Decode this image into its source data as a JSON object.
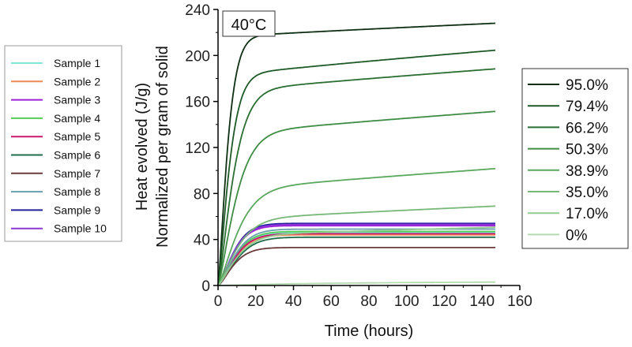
{
  "chart_data": {
    "type": "line",
    "annotation": "40°C",
    "xlabel": "Time (hours)",
    "ylabel_line1": "Heat evolved (J/g)",
    "ylabel_line2": "Normalized per gram of solid",
    "xlim": [
      0,
      160
    ],
    "ylim": [
      0,
      240
    ],
    "x_ticks": [
      0,
      20,
      40,
      60,
      80,
      100,
      120,
      140,
      160
    ],
    "y_ticks": [
      0,
      40,
      80,
      120,
      160,
      200,
      240
    ],
    "x_end": 147,
    "left_legend": [
      {
        "name": "Sample 1",
        "color": "#7fe6d9",
        "final": 46,
        "tau": 11
      },
      {
        "name": "Sample 2",
        "color": "#f08a55",
        "final": 44,
        "tau": 11
      },
      {
        "name": "Sample 3",
        "color": "#a020d8",
        "final": 52,
        "tau": 10
      },
      {
        "name": "Sample 4",
        "color": "#55cc55",
        "final": 47,
        "tau": 11
      },
      {
        "name": "Sample 5",
        "color": "#c8186e",
        "final": 45,
        "tau": 11
      },
      {
        "name": "Sample 6",
        "color": "#1f6b4a",
        "final": 42,
        "tau": 12
      },
      {
        "name": "Sample 7",
        "color": "#6b3b3b",
        "final": 33,
        "tau": 10
      },
      {
        "name": "Sample 8",
        "color": "#6a9db0",
        "final": 49,
        "tau": 11
      },
      {
        "name": "Sample 9",
        "color": "#20209a",
        "final": 54,
        "tau": 10
      },
      {
        "name": "Sample 10",
        "color": "#8e35d8",
        "final": 53,
        "tau": 10
      }
    ],
    "right_legend": [
      {
        "name": "95.0%",
        "color": "#0f2f13",
        "final": 227,
        "plateau": 217,
        "tau": 6,
        "slope": 0.075
      },
      {
        "name": "79.4%",
        "color": "#1e5a27",
        "final": 203,
        "plateau": 184,
        "tau": 7,
        "slope": 0.14
      },
      {
        "name": "66.2%",
        "color": "#2a6e31",
        "final": 187,
        "plateau": 170,
        "tau": 9.5,
        "slope": 0.125
      },
      {
        "name": "50.3%",
        "color": "#3f8c44",
        "final": 150,
        "plateau": 133,
        "tau": 11,
        "slope": 0.125
      },
      {
        "name": "38.9%",
        "color": "#5aa75e",
        "final": 100,
        "plateau": 84,
        "tau": 12.5,
        "slope": 0.12
      },
      {
        "name": "35.0%",
        "color": "#77b878",
        "final": 68,
        "plateau": 58,
        "tau": 12,
        "slope": 0.075
      },
      {
        "name": "17.0%",
        "color": "#93cb91",
        "final": 50,
        "plateau": 44,
        "tau": 12,
        "slope": 0.045
      },
      {
        "name": "0%",
        "color": "#b3dcae",
        "final": 3,
        "plateau": 1.5,
        "tau": 30,
        "slope": 0.01
      }
    ]
  }
}
